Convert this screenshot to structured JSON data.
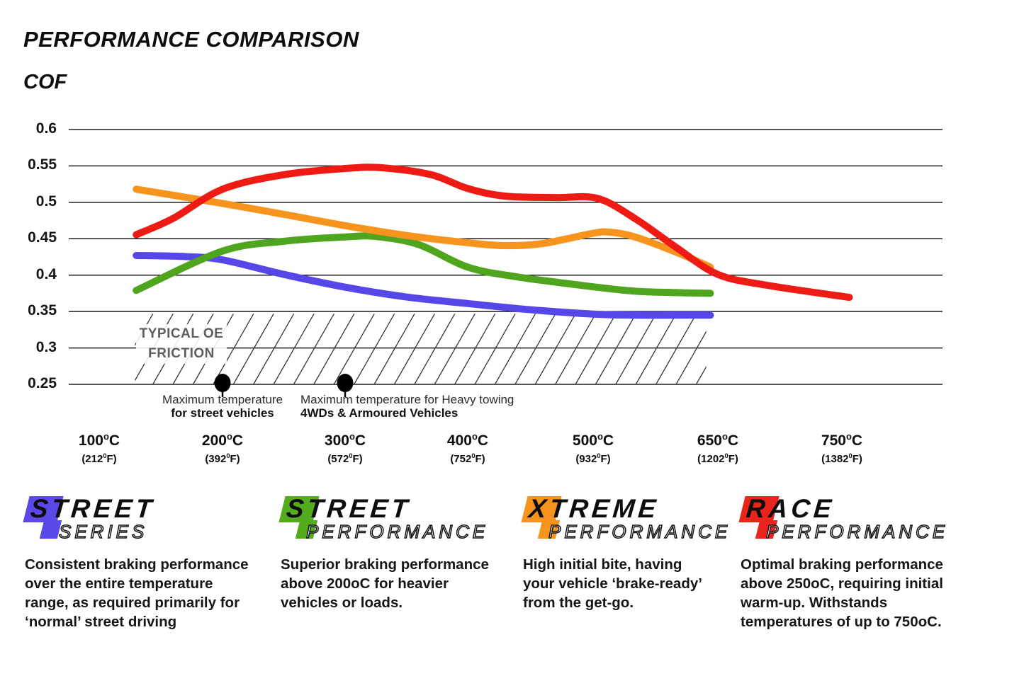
{
  "title": "PERFORMANCE COMPARISON",
  "ylabel": "COF",
  "chart_data": {
    "type": "line",
    "title": "PERFORMANCE COMPARISON",
    "ylabel": "COF",
    "ylim": [
      0.25,
      0.6
    ],
    "grid": true,
    "ytick_labels": [
      "0.6",
      "0.55",
      "0.5",
      "0.45",
      "0.4",
      "0.35",
      "0.3",
      "0.25"
    ],
    "x_ticks": [
      {
        "c": "100",
        "f": "212"
      },
      {
        "c": "200",
        "f": "392"
      },
      {
        "c": "300",
        "f": "572"
      },
      {
        "c": "400",
        "f": "752"
      },
      {
        "c": "500",
        "f": "932"
      },
      {
        "c": "650",
        "f": "1202"
      },
      {
        "c": "750",
        "f": "1382"
      }
    ],
    "series": [
      {
        "name": "Street Series",
        "color": "#5547e8",
        "points": [
          [
            130,
            0.427
          ],
          [
            170,
            0.4255
          ],
          [
            200,
            0.421
          ],
          [
            250,
            0.401
          ],
          [
            300,
            0.3835
          ],
          [
            350,
            0.37
          ],
          [
            400,
            0.361
          ],
          [
            450,
            0.3525
          ],
          [
            500,
            0.3465
          ],
          [
            550,
            0.345
          ],
          [
            600,
            0.345
          ],
          [
            641,
            0.345
          ]
        ]
      },
      {
        "name": "Street Performance",
        "color": "#50a51e",
        "points": [
          [
            130,
            0.379
          ],
          [
            200,
            0.433
          ],
          [
            250,
            0.4465
          ],
          [
            300,
            0.4525
          ],
          [
            325,
            0.453
          ],
          [
            360,
            0.442
          ],
          [
            400,
            0.411
          ],
          [
            440,
            0.3975
          ],
          [
            500,
            0.384
          ],
          [
            550,
            0.378
          ],
          [
            600,
            0.376
          ],
          [
            641,
            0.375
          ]
        ]
      },
      {
        "name": "Xtreme Performance",
        "color": "#f7941d",
        "points": [
          [
            130,
            0.518
          ],
          [
            200,
            0.4985
          ],
          [
            250,
            0.4835
          ],
          [
            300,
            0.468
          ],
          [
            350,
            0.4545
          ],
          [
            400,
            0.4445
          ],
          [
            430,
            0.4405
          ],
          [
            460,
            0.4435
          ],
          [
            500,
            0.4575
          ],
          [
            520,
            0.459
          ],
          [
            550,
            0.4525
          ],
          [
            600,
            0.4315
          ],
          [
            641,
            0.411
          ]
        ]
      },
      {
        "name": "Race Performance",
        "color": "#ee1b15",
        "points": [
          [
            130,
            0.4555
          ],
          [
            160,
            0.478
          ],
          [
            200,
            0.518
          ],
          [
            250,
            0.538
          ],
          [
            300,
            0.5465
          ],
          [
            330,
            0.5475
          ],
          [
            370,
            0.538
          ],
          [
            400,
            0.519
          ],
          [
            430,
            0.5085
          ],
          [
            470,
            0.5065
          ],
          [
            505,
            0.5055
          ],
          [
            550,
            0.478
          ],
          [
            600,
            0.438
          ],
          [
            650,
            0.401
          ],
          [
            690,
            0.386
          ],
          [
            756,
            0.3695
          ]
        ]
      }
    ],
    "oe_friction_band": {
      "label_line1": "TYPICAL OE",
      "label_line2": "FRICTION",
      "temp_range": [
        129,
        636
      ],
      "cof_range": [
        0.25,
        0.347
      ]
    },
    "markers": [
      {
        "temp": 200,
        "cof": 0.25,
        "label_line1": "Maximum temperature",
        "label_line2": "for street vehicles"
      },
      {
        "temp": 300,
        "cof": 0.25,
        "label_line1": "Maximum temperature for Heavy towing",
        "label_line2": "4WDs & Armoured Vehicles"
      }
    ]
  },
  "legend": {
    "items": [
      {
        "word1": "STREET",
        "word2": "SERIES",
        "color": "#5a49e8",
        "description": "Consistent braking performance over the entire temperature range, as required primarily for ‘normal’ street driving"
      },
      {
        "word1": "STREET",
        "word2": "PERFORMANCE",
        "color": "#54ab1e",
        "description": "Superior braking performance above 200oC for heavier vehicles or loads."
      },
      {
        "word1": "XTREME",
        "word2": "PERFORMANCE",
        "color": "#f7941d",
        "description": "High initial bite, having your vehicle ‘brake-ready’ from the get-go."
      },
      {
        "word1": "RACE",
        "word2": "PERFORMANCE",
        "color": "#e8241d",
        "description": "Optimal braking performance above 250oC, requiring initial warm-up. Withstands temperatures of up to 750oC."
      }
    ]
  }
}
